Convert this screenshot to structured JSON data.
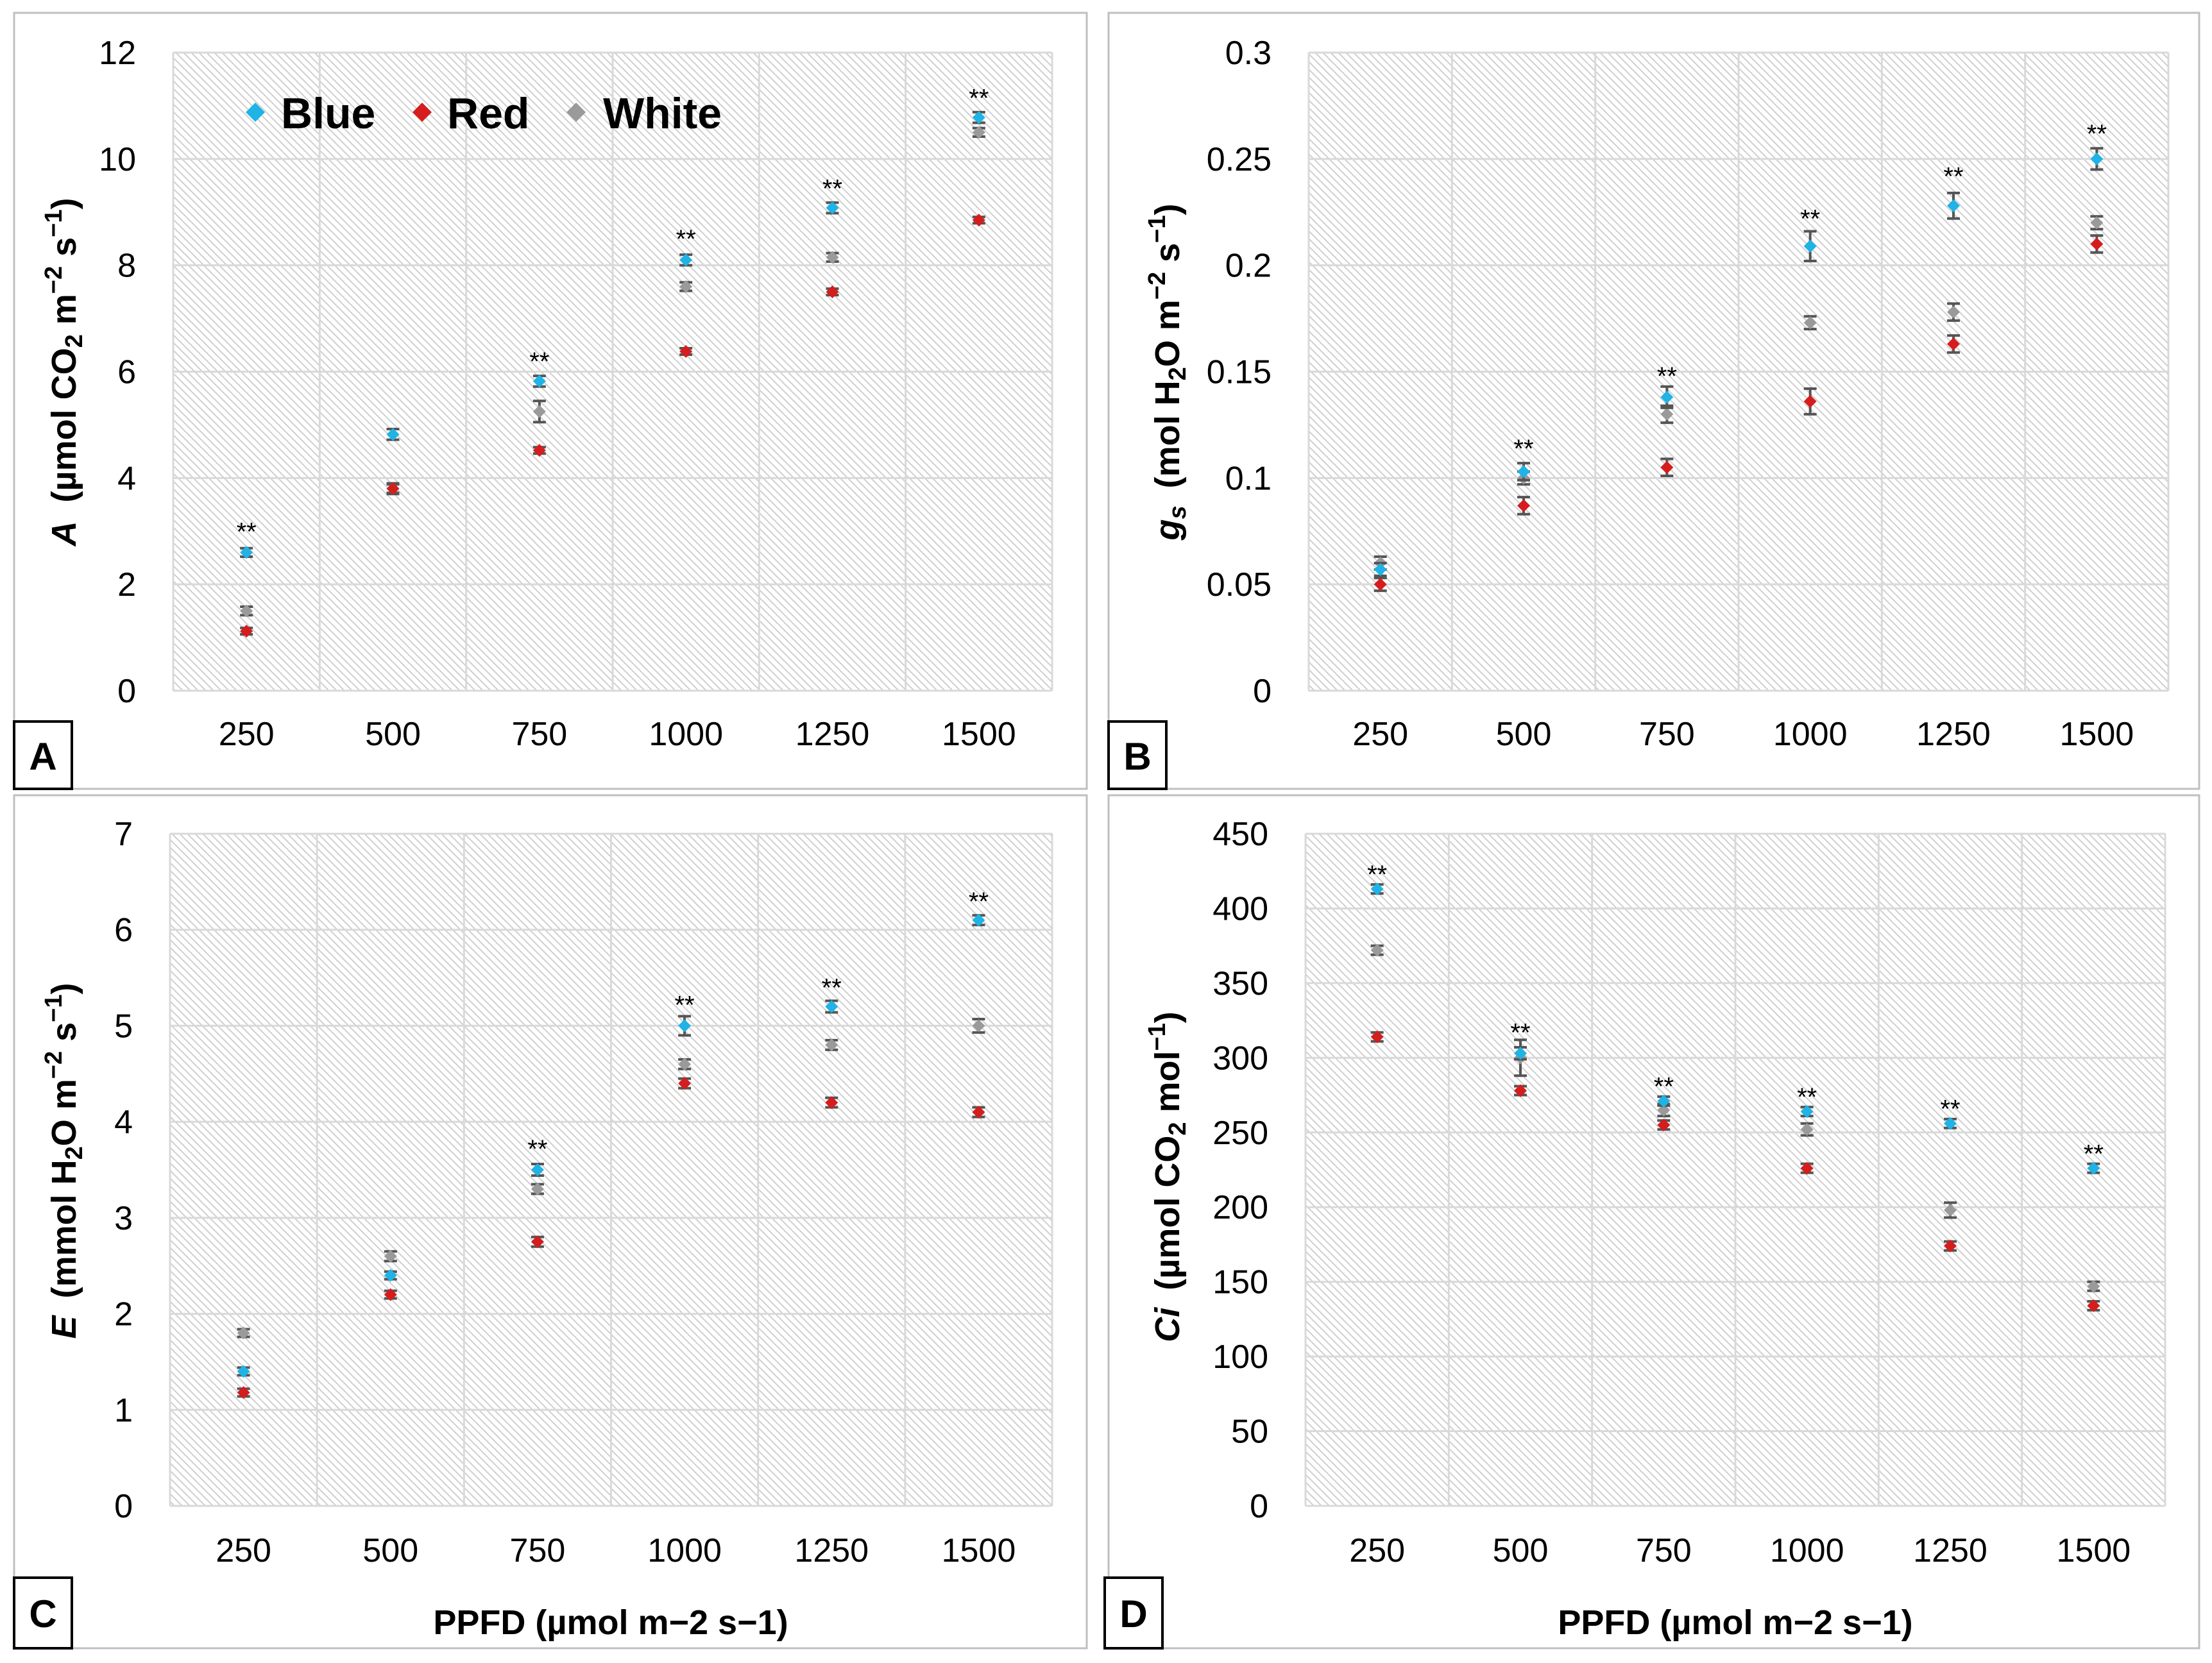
{
  "legend": {
    "blue": "Blue",
    "red": "Red",
    "white": "White"
  },
  "colors": {
    "blue": "#1fb3e6",
    "red": "#d51d1d",
    "white": "#9a9a9a",
    "grid": "#d9d9d9",
    "border": "#bfbfbf"
  },
  "chart_data": [
    {
      "panel": "A",
      "type": "scatter",
      "ylabel_parts": [
        "A",
        "(µmol CO",
        "2",
        " m",
        "−2",
        " s",
        "−1",
        ")"
      ],
      "xlabel": "",
      "categories": [
        "250",
        "500",
        "750",
        "1000",
        "1250",
        "1500"
      ],
      "ylim": [
        0,
        12
      ],
      "yticks": [
        "0",
        "2",
        "4",
        "6",
        "8",
        "10",
        "12"
      ],
      "series": [
        {
          "name": "White",
          "values": [
            1.5,
            3.8,
            5.25,
            7.6,
            8.15,
            10.5
          ],
          "errors": [
            0.08,
            0.1,
            0.2,
            0.08,
            0.08,
            0.08
          ]
        },
        {
          "name": "Red",
          "values": [
            1.12,
            3.8,
            4.52,
            6.38,
            7.5,
            8.85
          ],
          "errors": [
            0.06,
            0.08,
            0.06,
            0.06,
            0.06,
            0.06
          ]
        },
        {
          "name": "Blue",
          "values": [
            2.6,
            4.82,
            5.82,
            8.1,
            9.08,
            10.78
          ],
          "errors": [
            0.08,
            0.1,
            0.1,
            0.1,
            0.1,
            0.1
          ]
        }
      ],
      "significance": [
        "**",
        "",
        "**",
        "**",
        "**",
        "**"
      ],
      "significance_at": [
        3.0,
        5.2,
        6.2,
        8.5,
        9.45,
        11.15
      ]
    },
    {
      "panel": "B",
      "type": "scatter",
      "ylabel_parts": [
        "g",
        "s",
        "(mol H",
        "2",
        "O m",
        "−2",
        " s",
        "−1",
        ")"
      ],
      "xlabel": "",
      "categories": [
        "250",
        "500",
        "750",
        "1000",
        "1250",
        "1500"
      ],
      "ylim": [
        0,
        0.3
      ],
      "yticks": [
        "0",
        "0.05",
        "0.1",
        "0.15",
        "0.2",
        "0.25",
        "0.3"
      ],
      "series": [
        {
          "name": "White",
          "values": [
            0.06,
            0.1,
            0.13,
            0.173,
            0.178,
            0.22
          ],
          "errors": [
            0.003,
            0.003,
            0.004,
            0.003,
            0.004,
            0.003
          ]
        },
        {
          "name": "Red",
          "values": [
            0.05,
            0.087,
            0.105,
            0.136,
            0.163,
            0.21
          ],
          "errors": [
            0.003,
            0.004,
            0.004,
            0.006,
            0.004,
            0.004
          ]
        },
        {
          "name": "Blue",
          "values": [
            0.057,
            0.103,
            0.138,
            0.209,
            0.228,
            0.25
          ],
          "errors": [
            0.003,
            0.004,
            0.005,
            0.007,
            0.006,
            0.005
          ]
        }
      ],
      "significance": [
        "",
        "**",
        "**",
        "**",
        "**",
        "**"
      ],
      "significance_at": [
        0.07,
        0.114,
        0.148,
        0.222,
        0.242,
        0.262
      ]
    },
    {
      "panel": "C",
      "type": "scatter",
      "ylabel_parts": [
        "E",
        "(mmol H",
        "2",
        "O m",
        "−2",
        " s",
        "−1",
        ")"
      ],
      "xlabel": "PPFD (µmol m−2 s−1)",
      "categories": [
        "250",
        "500",
        "750",
        "1000",
        "1250",
        "1500"
      ],
      "ylim": [
        0,
        7
      ],
      "yticks": [
        "0",
        "1",
        "2",
        "3",
        "4",
        "5",
        "6",
        "7"
      ],
      "series": [
        {
          "name": "White",
          "values": [
            1.8,
            2.6,
            3.3,
            4.6,
            4.8,
            5.0
          ],
          "errors": [
            0.04,
            0.05,
            0.05,
            0.05,
            0.05,
            0.07
          ]
        },
        {
          "name": "Red",
          "values": [
            1.18,
            2.2,
            2.75,
            4.4,
            4.2,
            4.1
          ],
          "errors": [
            0.04,
            0.04,
            0.05,
            0.05,
            0.05,
            0.05
          ]
        },
        {
          "name": "Blue",
          "values": [
            1.4,
            2.4,
            3.5,
            5.0,
            5.2,
            6.1
          ],
          "errors": [
            0.04,
            0.04,
            0.06,
            0.1,
            0.06,
            0.05
          ]
        }
      ],
      "significance": [
        "",
        "",
        "**",
        "**",
        "**",
        "**"
      ],
      "significance_at": [
        1.6,
        2.6,
        3.72,
        5.22,
        5.4,
        6.3
      ]
    },
    {
      "panel": "D",
      "type": "scatter",
      "ylabel_parts": [
        "Ci",
        "(µmol CO",
        "2",
        " mol",
        "−1",
        ")"
      ],
      "xlabel": "PPFD (µmol m−2  s−1)",
      "categories": [
        "250",
        "500",
        "750",
        "1000",
        "1250",
        "1500"
      ],
      "ylim": [
        0,
        450
      ],
      "yticks": [
        "0",
        "50",
        "100",
        "150",
        "200",
        "250",
        "300",
        "350",
        "400",
        "450"
      ],
      "series": [
        {
          "name": "White",
          "values": [
            372,
            300,
            265,
            252,
            198,
            147
          ],
          "errors": [
            3,
            12,
            4,
            4,
            5,
            3
          ]
        },
        {
          "name": "Red",
          "values": [
            314,
            278,
            255,
            226,
            174,
            134
          ],
          "errors": [
            3,
            3,
            3,
            3,
            3,
            3
          ]
        },
        {
          "name": "Blue",
          "values": [
            413,
            303,
            271,
            264,
            256,
            226
          ],
          "errors": [
            3,
            4,
            3,
            3,
            3,
            3
          ]
        }
      ],
      "significance": [
        "**",
        "**",
        "**",
        "**",
        "**",
        "**"
      ],
      "significance_at": [
        423,
        317,
        281,
        274,
        266,
        236
      ]
    }
  ]
}
